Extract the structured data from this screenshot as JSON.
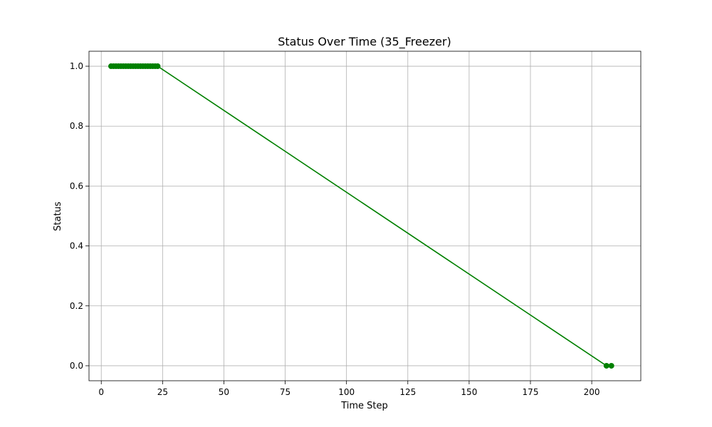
{
  "chart_data": {
    "type": "line",
    "title": "Status Over Time (35_Freezer)",
    "xlabel": "Time Step",
    "ylabel": "Status",
    "xlim": [
      -5,
      220
    ],
    "ylim": [
      -0.05,
      1.05
    ],
    "xticks": [
      0,
      25,
      50,
      75,
      100,
      125,
      150,
      175,
      200
    ],
    "yticks": [
      0.0,
      0.2,
      0.4,
      0.6,
      0.8,
      1.0
    ],
    "xtick_labels": [
      "0",
      "25",
      "50",
      "75",
      "100",
      "125",
      "150",
      "175",
      "200"
    ],
    "ytick_labels": [
      "0.0",
      "0.2",
      "0.4",
      "0.6",
      "0.8",
      "1.0"
    ],
    "grid": true,
    "color": "#008000",
    "marker": "circle",
    "series": [
      {
        "x": [
          4,
          5,
          6,
          7,
          8,
          9,
          10,
          11,
          12,
          13,
          14,
          15,
          16,
          17,
          18,
          19,
          20,
          21,
          22,
          23,
          206,
          208
        ],
        "y": [
          1,
          1,
          1,
          1,
          1,
          1,
          1,
          1,
          1,
          1,
          1,
          1,
          1,
          1,
          1,
          1,
          1,
          1,
          1,
          1,
          0,
          0
        ]
      }
    ]
  }
}
